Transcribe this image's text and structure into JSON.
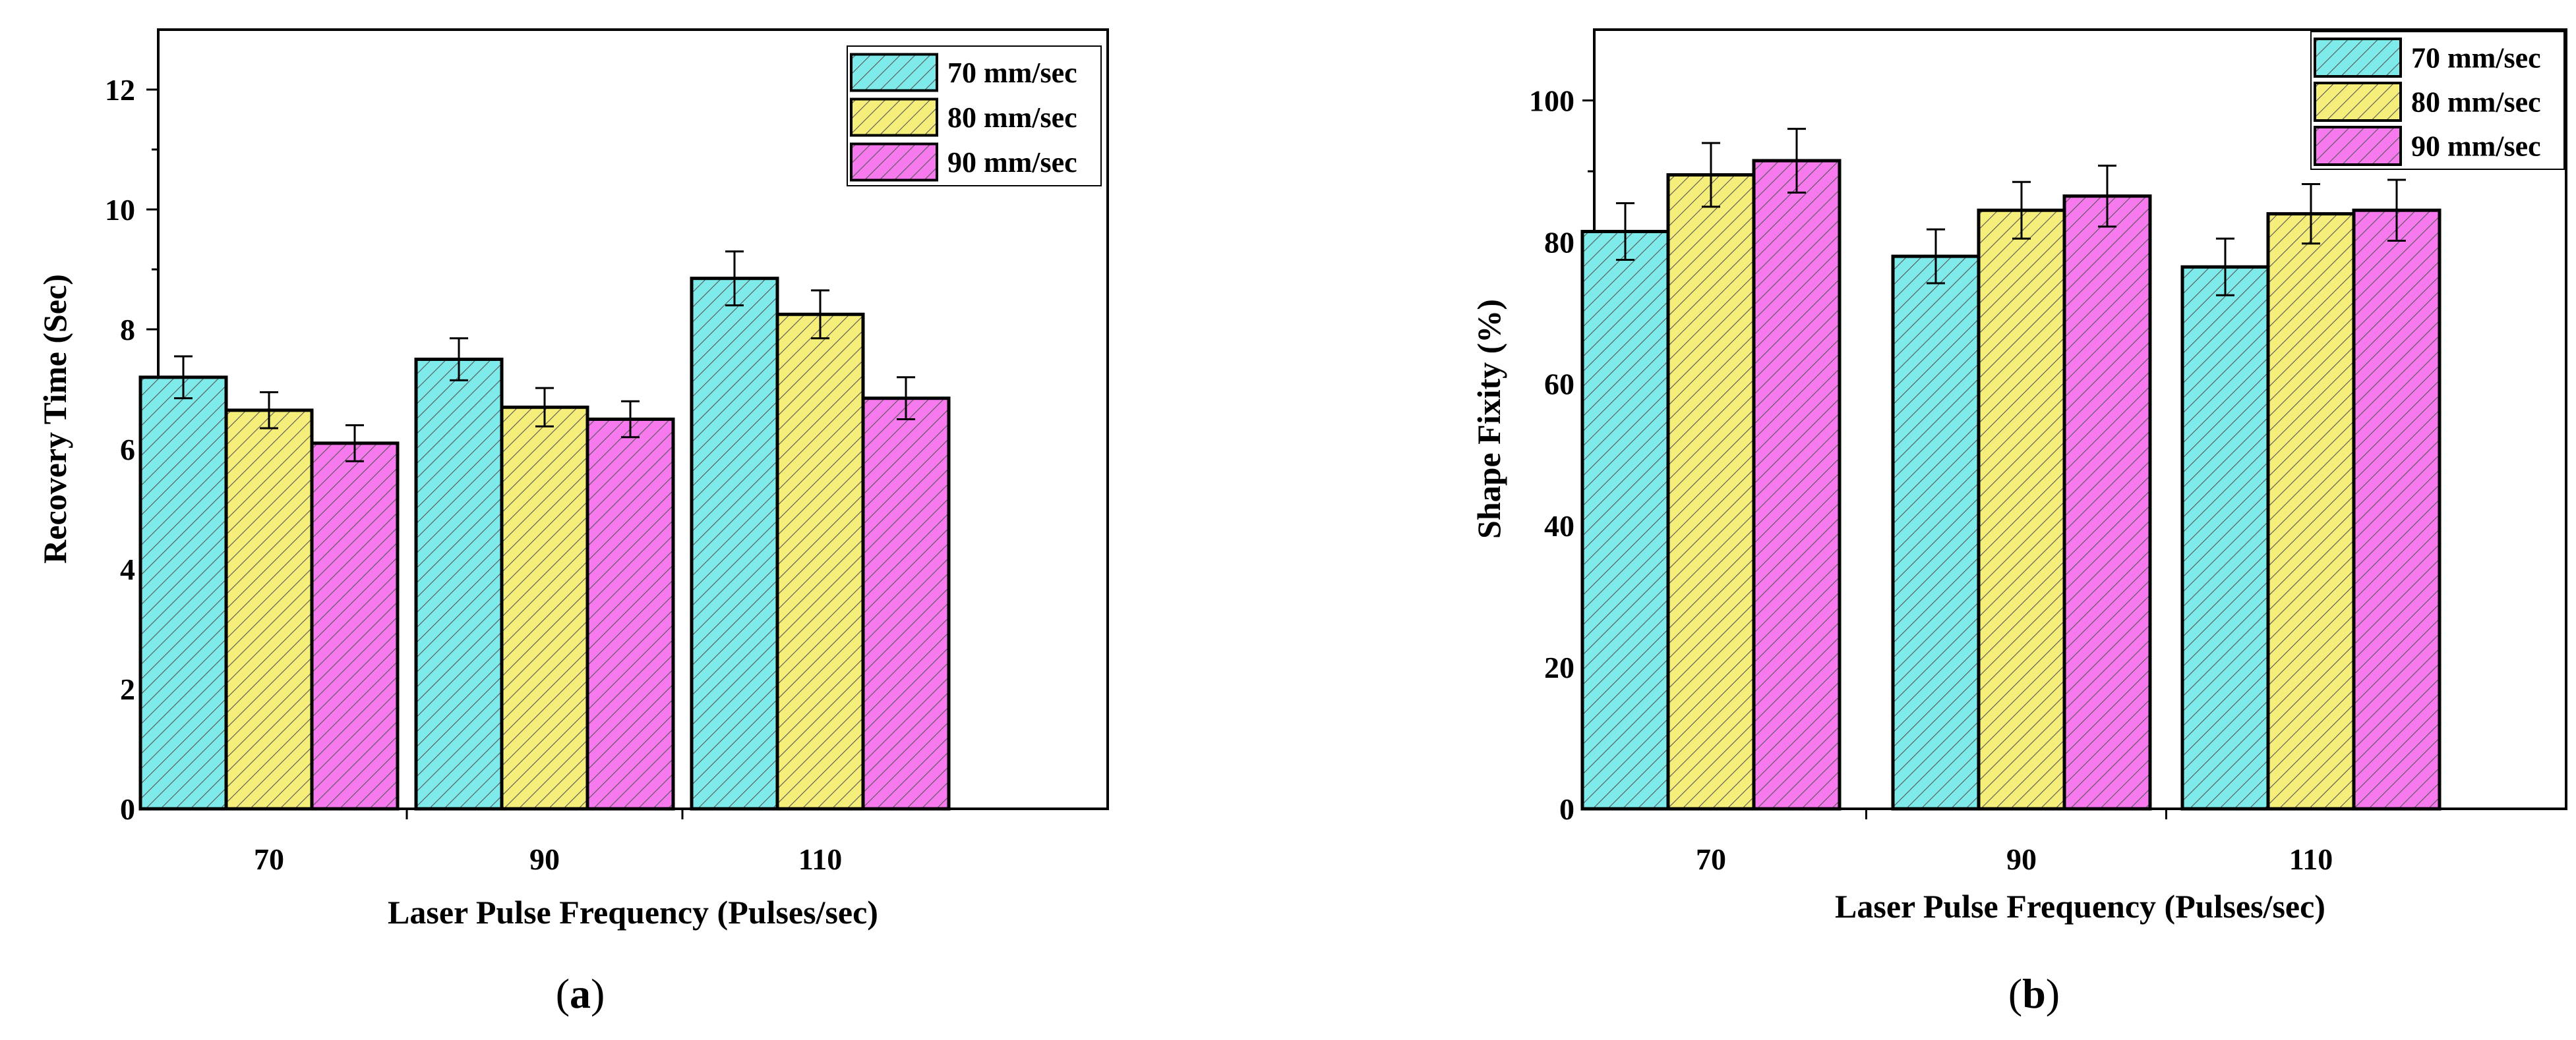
{
  "colors": {
    "series": [
      "#7FEAEA",
      "#F6EE7A",
      "#F67AEE"
    ],
    "hatch": "#555555",
    "axis": "#000000"
  },
  "chart_data": [
    {
      "panel": "a",
      "caption": "(a)",
      "type": "bar",
      "xlabel": "Laser Pulse Frequency (Pulses/sec)",
      "ylabel": "Recovery Time (Sec)",
      "categories": [
        "70",
        "90",
        "110"
      ],
      "ylim": [
        0,
        13
      ],
      "yticks": [
        0,
        2,
        4,
        6,
        8,
        10,
        12
      ],
      "legend_position": "top-right",
      "series": [
        {
          "name": "70 mm/sec",
          "values": [
            7.2,
            7.5,
            8.85
          ],
          "errors": [
            0.35,
            0.35,
            0.45
          ]
        },
        {
          "name": "80 mm/sec",
          "values": [
            6.65,
            6.7,
            8.25
          ],
          "errors": [
            0.3,
            0.32,
            0.4
          ]
        },
        {
          "name": "90 mm/sec",
          "values": [
            6.1,
            6.5,
            6.85
          ],
          "errors": [
            0.3,
            0.3,
            0.35
          ]
        }
      ]
    },
    {
      "panel": "b",
      "caption": "(b)",
      "type": "bar",
      "xlabel": "Laser Pulse Frequency (Pulses/sec)",
      "ylabel": "Shape Fixity (%)",
      "categories": [
        "70",
        "90",
        "110"
      ],
      "ylim": [
        0,
        110
      ],
      "yticks": [
        0,
        20,
        40,
        60,
        80,
        100
      ],
      "legend_position": "top-right",
      "series": [
        {
          "name": "70 mm/sec",
          "values": [
            81.5,
            78.0,
            76.5
          ],
          "errors": [
            4.0,
            3.8,
            4.0
          ]
        },
        {
          "name": "80 mm/sec",
          "values": [
            89.5,
            84.5,
            84.0
          ],
          "errors": [
            4.5,
            4.0,
            4.2
          ]
        },
        {
          "name": "90 mm/sec",
          "values": [
            91.5,
            86.5,
            84.5
          ],
          "errors": [
            4.5,
            4.3,
            4.3
          ]
        }
      ]
    }
  ]
}
